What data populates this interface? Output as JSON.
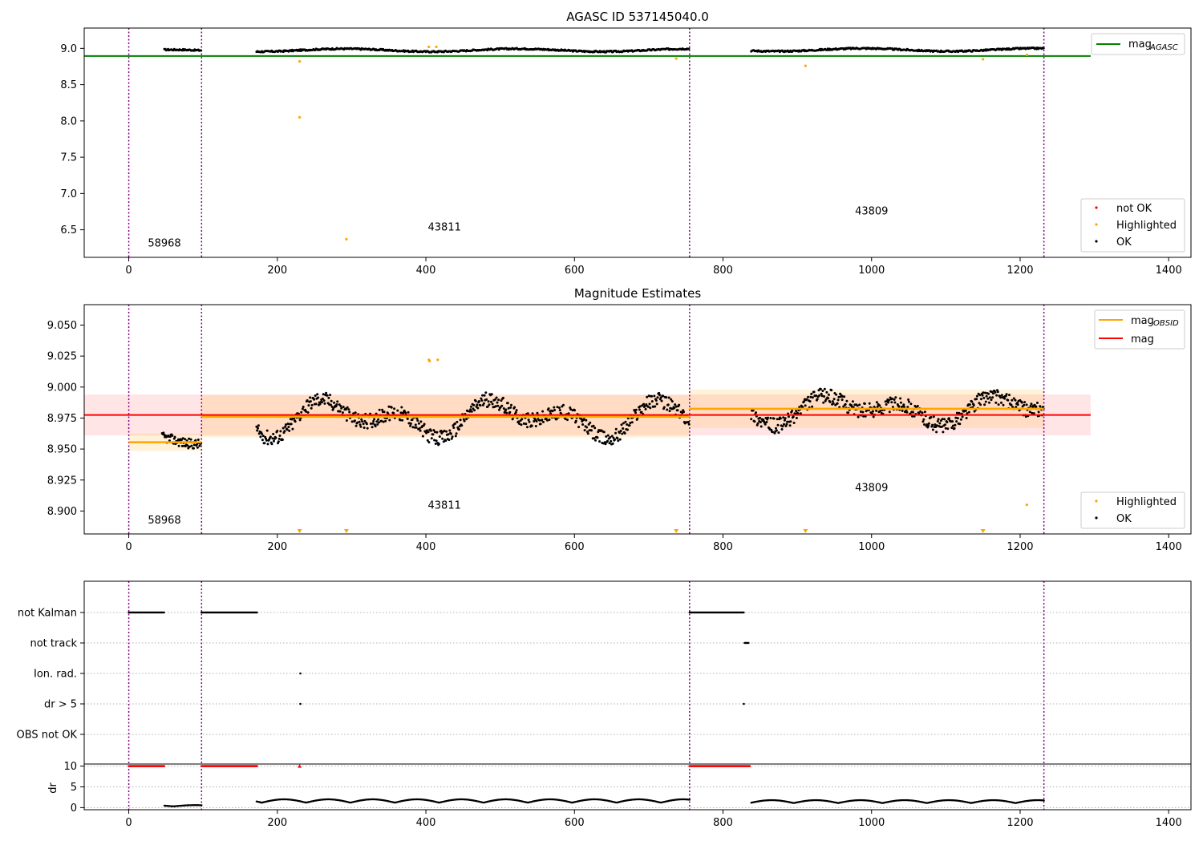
{
  "chart_data": [
    {
      "type": "scatter",
      "title": "AGASC ID 537145040.0",
      "xlim": [
        -60,
        1430
      ],
      "ylim": [
        6.12,
        9.28
      ],
      "xticks": [
        0,
        200,
        400,
        600,
        800,
        1000,
        1200,
        1400
      ],
      "yticks": [
        6.5,
        7.0,
        7.5,
        8.0,
        8.5,
        9.0
      ],
      "ytick_labels": [
        "6.5",
        "7.0",
        "7.5",
        "8.0",
        "8.5",
        "9.0"
      ],
      "obsid_boundaries": [
        0,
        98,
        755,
        1232
      ],
      "obsid_labels": [
        {
          "text": "58968",
          "x": 48,
          "y": 6.27
        },
        {
          "text": "43811",
          "x": 425,
          "y": 6.49
        },
        {
          "text": "43809",
          "x": 1000,
          "y": 6.71
        }
      ],
      "agasc_mag": 8.895,
      "agasc_line_x": [
        -60,
        1295
      ],
      "ok_segments": [
        {
          "x_start": 48,
          "x_end": 98,
          "base": 8.962
        },
        {
          "x_start": 172,
          "x_end": 755,
          "base": 8.975
        },
        {
          "x_start": 838,
          "x_end": 1232,
          "base": 8.98
        }
      ],
      "highlighted_points": [
        {
          "x": 230,
          "y": 8.82
        },
        {
          "x": 230,
          "y": 8.05
        },
        {
          "x": 293,
          "y": 6.37
        },
        {
          "x": 404,
          "y": 9.02
        },
        {
          "x": 414,
          "y": 9.02
        },
        {
          "x": 737,
          "y": 8.86
        },
        {
          "x": 911,
          "y": 8.76
        },
        {
          "x": 1150,
          "y": 8.85
        },
        {
          "x": 1209,
          "y": 8.91
        }
      ],
      "legends": [
        {
          "entries": [
            {
              "label": "mag",
              "sub": "AGASC",
              "kind": "line",
              "color": "#008000"
            }
          ],
          "loc": "upper right"
        },
        {
          "entries": [
            {
              "label": "not OK",
              "kind": "dot",
              "color": "#ff0000"
            },
            {
              "label": "Highlighted",
              "kind": "dot",
              "color": "#ffa500"
            },
            {
              "label": "OK",
              "kind": "dot",
              "color": "#000000"
            }
          ],
          "loc": "lower right"
        }
      ]
    },
    {
      "type": "scatter",
      "title": "Magnitude Estimates",
      "xlim": [
        -60,
        1430
      ],
      "ylim": [
        8.8815,
        9.0665
      ],
      "xticks": [
        0,
        200,
        400,
        600,
        800,
        1000,
        1200,
        1400
      ],
      "yticks": [
        8.9,
        8.925,
        8.95,
        8.975,
        9.0,
        9.025,
        9.05
      ],
      "ytick_labels": [
        "8.900",
        "8.925",
        "8.950",
        "8.975",
        "9.000",
        "9.025",
        "9.050"
      ],
      "obsid_boundaries": [
        0,
        98,
        755,
        1232
      ],
      "obsid_labels": [
        {
          "text": "58968",
          "x": 48,
          "y": 8.89
        },
        {
          "text": "43811",
          "x": 425,
          "y": 8.902
        },
        {
          "text": "43809",
          "x": 1000,
          "y": 8.916
        }
      ],
      "mag": 8.9775,
      "mag_band": [
        8.961,
        8.994
      ],
      "mag_line_x": [
        -60,
        1295
      ],
      "obsid_mags": [
        {
          "x_start": 0,
          "x_end": 98,
          "mag": 8.9555,
          "band": [
            8.9485,
            8.9625
          ]
        },
        {
          "x_start": 98,
          "x_end": 755,
          "mag": 8.976,
          "band": [
            8.9595,
            8.9935
          ]
        },
        {
          "x_start": 755,
          "x_end": 1232,
          "mag": 8.9825,
          "band": [
            8.967,
            8.998
          ]
        }
      ],
      "ok_segments": [
        {
          "x_start": 45,
          "x_end": 98,
          "base": 8.955,
          "amp": 0.006,
          "noise": 0.004
        },
        {
          "x_start": 172,
          "x_end": 755,
          "base": 8.975,
          "amp": 0.018,
          "noise": 0.006
        },
        {
          "x_start": 838,
          "x_end": 1232,
          "base": 8.982,
          "amp": 0.014,
          "noise": 0.006
        }
      ],
      "highlighted_points": [
        {
          "x": 404,
          "y": 9.022
        },
        {
          "x": 405,
          "y": 9.021
        },
        {
          "x": 416,
          "y": 9.022
        },
        {
          "x": 1209,
          "y": 8.905
        }
      ],
      "below_axis_markers_x": [
        230,
        293,
        737,
        911,
        1150
      ],
      "legends": [
        {
          "entries": [
            {
              "label": "mag",
              "sub": "OBSID",
              "kind": "line",
              "color": "#ffa500"
            },
            {
              "label": "mag",
              "kind": "line",
              "color": "#ff0000"
            }
          ],
          "loc": "upper right"
        },
        {
          "entries": [
            {
              "label": "Highlighted",
              "kind": "dot",
              "color": "#ffa500"
            },
            {
              "label": "OK",
              "kind": "dot",
              "color": "#000000"
            }
          ],
          "loc": "lower right"
        }
      ]
    },
    {
      "type": "scatter",
      "title": "",
      "xlim": [
        -60,
        1430
      ],
      "xticks": [
        0,
        200,
        400,
        600,
        800,
        1000,
        1200,
        1400
      ],
      "obsid_boundaries": [
        0,
        98,
        755,
        1232
      ],
      "flag_rows": [
        "not Kalman",
        "not track",
        "Ion. rad.",
        "dr > 5",
        "OBS not OK"
      ],
      "flag_segments": [
        {
          "row": "not Kalman",
          "x_start": 0,
          "x_end": 48
        },
        {
          "row": "not Kalman",
          "x_start": 98,
          "x_end": 173
        },
        {
          "row": "not Kalman",
          "x_start": 755,
          "x_end": 828
        },
        {
          "row": "not track",
          "x_start": 829,
          "x_end": 835
        },
        {
          "row": "Ion. rad.",
          "x_start": 231,
          "x_end": 231
        },
        {
          "row": "dr > 5",
          "x_start": 231,
          "x_end": 231
        },
        {
          "row": "dr > 5",
          "x_start": 828,
          "x_end": 828
        }
      ],
      "dr": {
        "ylabel": "dr",
        "ylim": [
          -0.5,
          10.5
        ],
        "yticks": [
          0,
          5,
          10
        ],
        "clipped_value": 10,
        "clipped_segments": [
          {
            "x_start": 0,
            "x_end": 48
          },
          {
            "x_start": 98,
            "x_end": 173
          },
          {
            "x_start": 230,
            "x_end": 231
          },
          {
            "x_start": 755,
            "x_end": 836
          }
        ],
        "segments": [
          {
            "x_start": 48,
            "x_end": 98,
            "base": 0.3,
            "amp": 0.3
          },
          {
            "x_start": 172,
            "x_end": 755,
            "base": 1.2,
            "amp": 0.8
          },
          {
            "x_start": 838,
            "x_end": 1232,
            "base": 1.1,
            "amp": 0.7
          }
        ]
      }
    }
  ]
}
